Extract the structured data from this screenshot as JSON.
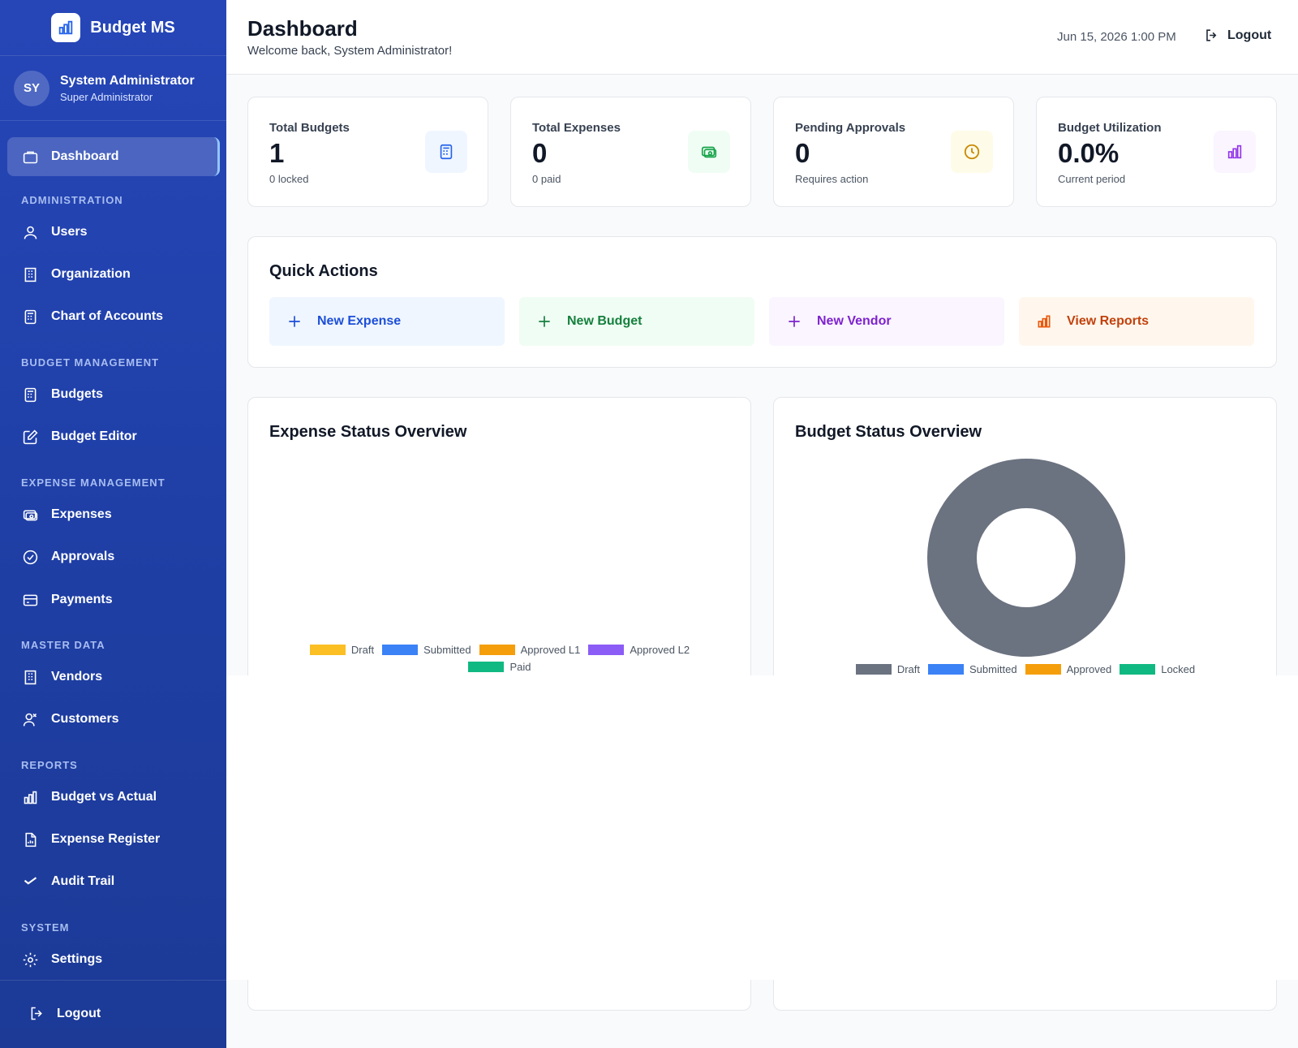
{
  "app": {
    "name": "Budget MS"
  },
  "user": {
    "initials": "SY",
    "name": "System Administrator",
    "role": "Super Administrator"
  },
  "sidebar": {
    "dashboard": "Dashboard",
    "sections": {
      "administration": "ADMINISTRATION",
      "budget_management": "BUDGET MANAGEMENT",
      "expense_management": "EXPENSE MANAGEMENT",
      "master_data": "MASTER DATA",
      "reports": "REPORTS",
      "system": "SYSTEM"
    },
    "items": {
      "users": "Users",
      "organization": "Organization",
      "chart_of_accounts": "Chart of Accounts",
      "budgets": "Budgets",
      "budget_editor": "Budget Editor",
      "expenses": "Expenses",
      "approvals": "Approvals",
      "payments": "Payments",
      "vendors": "Vendors",
      "customers": "Customers",
      "budget_vs_actual": "Budget vs Actual",
      "expense_register": "Expense Register",
      "audit_trail": "Audit Trail",
      "settings": "Settings"
    },
    "logout": "Logout"
  },
  "header": {
    "title": "Dashboard",
    "subtitle": "Welcome back, System Administrator!",
    "datetime": "Jun 15, 2026 1:00 PM",
    "logout": "Logout"
  },
  "stats": [
    {
      "label": "Total Budgets",
      "value": "1",
      "sub": "0 locked",
      "icon": "calculator-icon",
      "color": "#2563eb",
      "bg": "#eff6ff"
    },
    {
      "label": "Total Expenses",
      "value": "0",
      "sub": "0 paid",
      "icon": "cash-icon",
      "color": "#16a34a",
      "bg": "#f0fdf4"
    },
    {
      "label": "Pending Approvals",
      "value": "0",
      "sub": "Requires action",
      "icon": "clock-icon",
      "color": "#ca8a04",
      "bg": "#fefce8"
    },
    {
      "label": "Budget Utilization",
      "value": "0.0%",
      "sub": "Current period",
      "icon": "bar-chart-icon",
      "color": "#9333ea",
      "bg": "#faf5ff"
    }
  ],
  "quick_actions": {
    "title": "Quick Actions",
    "buttons": [
      {
        "label": "New Expense",
        "icon": "plus-icon",
        "color": "#1d4ed8",
        "bg": "#eff6ff"
      },
      {
        "label": "New Budget",
        "icon": "plus-icon",
        "color": "#15803d",
        "bg": "#f0fdf4"
      },
      {
        "label": "New Vendor",
        "icon": "plus-icon",
        "color": "#7e22ce",
        "bg": "#faf5ff"
      },
      {
        "label": "View Reports",
        "icon": "bar-chart-icon",
        "color": "#c2410c",
        "bg": "#fff7ed"
      }
    ]
  },
  "charts": {
    "expense_title": "Expense Status Overview",
    "budget_title": "Budget Status Overview"
  },
  "chart_data": [
    {
      "type": "bar",
      "title": "Expense Status Overview",
      "series": [
        {
          "name": "Draft",
          "color": "#fbbf24",
          "values": []
        },
        {
          "name": "Submitted",
          "color": "#3b82f6",
          "values": []
        },
        {
          "name": "Approved L1",
          "color": "#f59e0b",
          "values": []
        },
        {
          "name": "Approved L2",
          "color": "#8b5cf6",
          "values": []
        },
        {
          "name": "Paid",
          "color": "#10b981",
          "values": []
        }
      ]
    },
    {
      "type": "pie",
      "title": "Budget Status Overview",
      "categories": [
        "Draft",
        "Submitted",
        "Approved",
        "Locked"
      ],
      "values": [
        1,
        0,
        0,
        0
      ],
      "colors": [
        "#6b7280",
        "#3b82f6",
        "#f59e0b",
        "#10b981"
      ],
      "donut": true
    }
  ]
}
